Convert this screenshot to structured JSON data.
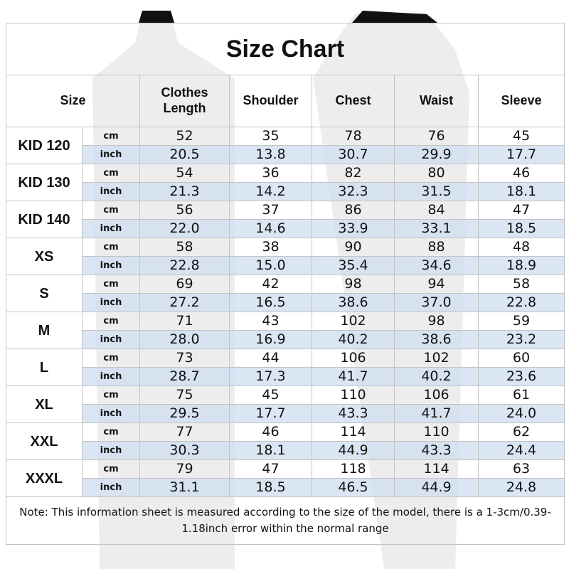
{
  "title": "Size Chart",
  "table": {
    "headers": [
      "Size",
      "Clothes Length",
      "Shoulder",
      "Chest",
      "Waist",
      "Sleeve"
    ],
    "rows": [
      {
        "size": "KID 120",
        "cm_label": "cm",
        "cm": [
          "52",
          "35",
          "78",
          "76",
          "45"
        ],
        "inch_label": "inch",
        "inch": [
          "20.5",
          "13.8",
          "30.7",
          "29.9",
          "17.7"
        ]
      },
      {
        "size": "KID 130",
        "cm_label": "cm",
        "cm": [
          "54",
          "36",
          "82",
          "80",
          "46"
        ],
        "inch_label": "inch",
        "inch": [
          "21.3",
          "14.2",
          "32.3",
          "31.5",
          "18.1"
        ]
      },
      {
        "size": "KID 140",
        "cm_label": "cm",
        "cm": [
          "56",
          "37",
          "86",
          "84",
          "47"
        ],
        "inch_label": "inch",
        "inch": [
          "22.0",
          "14.6",
          "33.9",
          "33.1",
          "18.5"
        ]
      },
      {
        "size": "XS",
        "cm_label": "cm",
        "cm": [
          "58",
          "38",
          "90",
          "88",
          "48"
        ],
        "inch_label": "inch",
        "inch": [
          "22.8",
          "15.0",
          "35.4",
          "34.6",
          "18.9"
        ]
      },
      {
        "size": "S",
        "cm_label": "cm",
        "cm": [
          "69",
          "42",
          "98",
          "94",
          "58"
        ],
        "inch_label": "inch",
        "inch": [
          "27.2",
          "16.5",
          "38.6",
          "37.0",
          "22.8"
        ]
      },
      {
        "size": "M",
        "cm_label": "cm",
        "cm": [
          "71",
          "43",
          "102",
          "98",
          "59"
        ],
        "inch_label": "inch",
        "inch": [
          "28.0",
          "16.9",
          "40.2",
          "38.6",
          "23.2"
        ]
      },
      {
        "size": "L",
        "cm_label": "cm",
        "cm": [
          "73",
          "44",
          "106",
          "102",
          "60"
        ],
        "inch_label": "inch",
        "inch": [
          "28.7",
          "17.3",
          "41.7",
          "40.2",
          "23.6"
        ]
      },
      {
        "size": "XL",
        "cm_label": "cm",
        "cm": [
          "75",
          "45",
          "110",
          "106",
          "61"
        ],
        "inch_label": "inch",
        "inch": [
          "29.5",
          "17.7",
          "43.3",
          "41.7",
          "24.0"
        ]
      },
      {
        "size": "XXL",
        "cm_label": "cm",
        "cm": [
          "77",
          "46",
          "114",
          "110",
          "62"
        ],
        "inch_label": "inch",
        "inch": [
          "30.3",
          "18.1",
          "44.9",
          "43.3",
          "24.4"
        ]
      },
      {
        "size": "XXXL",
        "cm_label": "cm",
        "cm": [
          "79",
          "47",
          "118",
          "114",
          "63"
        ],
        "inch_label": "inch",
        "inch": [
          "31.1",
          "18.5",
          "46.5",
          "44.9",
          "24.8"
        ]
      }
    ]
  },
  "note": "Note: This information sheet is measured according to the size of the model, there is a 1-3cm/0.39-1.18inch error within the normal range"
}
